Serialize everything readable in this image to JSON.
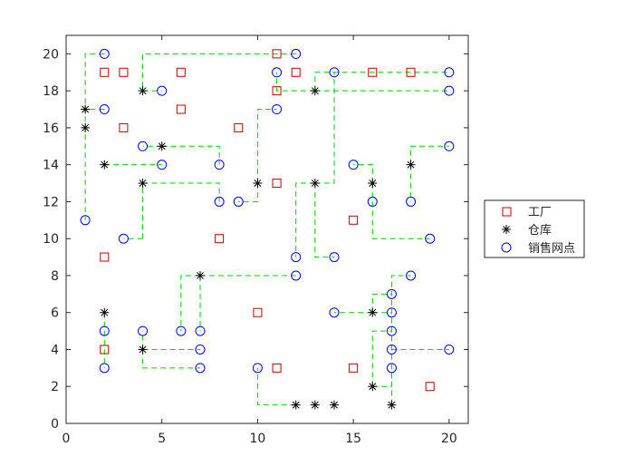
{
  "chart_data": {
    "type": "scatter",
    "xlim": [
      0,
      21
    ],
    "ylim": [
      0,
      21
    ],
    "x_ticks": [
      0,
      5,
      10,
      15,
      20
    ],
    "y_ticks": [
      0,
      2,
      4,
      6,
      8,
      10,
      12,
      14,
      16,
      18,
      20
    ],
    "grid": false,
    "legend_position": "right",
    "colors": {
      "factory": "#c00000",
      "warehouse": "#000000",
      "outlet": "#0000ff",
      "route": "#00cc00",
      "axes": "#262626"
    },
    "series": [
      {
        "name": "工厂",
        "marker": "square",
        "points": [
          [
            2,
            19
          ],
          [
            3,
            19
          ],
          [
            6,
            19
          ],
          [
            11,
            20
          ],
          [
            12,
            19
          ],
          [
            16,
            19
          ],
          [
            18,
            19
          ],
          [
            6,
            17
          ],
          [
            11,
            18
          ],
          [
            3,
            16
          ],
          [
            9,
            16
          ],
          [
            11,
            13
          ],
          [
            15,
            11
          ],
          [
            8,
            10
          ],
          [
            2,
            9
          ],
          [
            10,
            6
          ],
          [
            2,
            4
          ],
          [
            11,
            3
          ],
          [
            15,
            3
          ],
          [
            19,
            2
          ]
        ]
      },
      {
        "name": "仓库",
        "marker": "asterisk",
        "points": [
          [
            1,
            17
          ],
          [
            1,
            16
          ],
          [
            4,
            18
          ],
          [
            13,
            18
          ],
          [
            2,
            14
          ],
          [
            5,
            15
          ],
          [
            4,
            13
          ],
          [
            10,
            13
          ],
          [
            13,
            13
          ],
          [
            16,
            13
          ],
          [
            18,
            14
          ],
          [
            7,
            8
          ],
          [
            2,
            6
          ],
          [
            4,
            4
          ],
          [
            16,
            6
          ],
          [
            16,
            2
          ],
          [
            17,
            1
          ],
          [
            12,
            1
          ],
          [
            13,
            1
          ],
          [
            14,
            1
          ]
        ]
      },
      {
        "name": "销售网点",
        "marker": "circle",
        "points": [
          [
            2,
            20
          ],
          [
            12,
            20
          ],
          [
            5,
            18
          ],
          [
            11,
            19
          ],
          [
            14,
            19
          ],
          [
            20,
            19
          ],
          [
            20,
            18
          ],
          [
            2,
            17
          ],
          [
            11,
            17
          ],
          [
            4,
            15
          ],
          [
            5,
            14
          ],
          [
            8,
            14
          ],
          [
            15,
            14
          ],
          [
            20,
            15
          ],
          [
            8,
            12
          ],
          [
            9,
            12
          ],
          [
            16,
            12
          ],
          [
            18,
            12
          ],
          [
            1,
            11
          ],
          [
            3,
            10
          ],
          [
            19,
            10
          ],
          [
            12,
            9
          ],
          [
            14,
            9
          ],
          [
            12,
            8
          ],
          [
            18,
            8
          ],
          [
            17,
            7
          ],
          [
            14,
            6
          ],
          [
            17,
            6
          ],
          [
            2,
            5
          ],
          [
            4,
            5
          ],
          [
            6,
            5
          ],
          [
            7,
            5
          ],
          [
            17,
            5
          ],
          [
            7,
            4
          ],
          [
            17,
            4
          ],
          [
            20,
            4
          ],
          [
            2,
            3
          ],
          [
            7,
            3
          ],
          [
            10,
            3
          ],
          [
            17,
            3
          ]
        ]
      }
    ],
    "routes": [
      [
        [
          2,
          20
        ],
        [
          1,
          20
        ],
        [
          1,
          17
        ],
        [
          1,
          16
        ],
        [
          1,
          11
        ]
      ],
      [
        [
          2,
          17
        ],
        [
          1,
          17
        ]
      ],
      [
        [
          12,
          20
        ],
        [
          4,
          20
        ],
        [
          4,
          18
        ],
        [
          5,
          18
        ]
      ],
      [
        [
          13,
          18
        ],
        [
          11,
          18
        ],
        [
          11,
          19
        ]
      ],
      [
        [
          13,
          18
        ],
        [
          13,
          19
        ],
        [
          20,
          19
        ]
      ],
      [
        [
          13,
          18
        ],
        [
          20,
          18
        ]
      ],
      [
        [
          5,
          15
        ],
        [
          4,
          15
        ]
      ],
      [
        [
          5,
          15
        ],
        [
          8,
          15
        ],
        [
          8,
          14
        ]
      ],
      [
        [
          2,
          14
        ],
        [
          5,
          14
        ]
      ],
      [
        [
          4,
          13
        ],
        [
          8,
          13
        ],
        [
          8,
          12
        ]
      ],
      [
        [
          10,
          13
        ],
        [
          10,
          17
        ],
        [
          11,
          17
        ]
      ],
      [
        [
          10,
          13
        ],
        [
          10,
          12
        ],
        [
          9,
          12
        ]
      ],
      [
        [
          13,
          13
        ],
        [
          12,
          13
        ],
        [
          12,
          9
        ]
      ],
      [
        [
          13,
          13
        ],
        [
          14,
          13
        ],
        [
          14,
          19
        ]
      ],
      [
        [
          13,
          13
        ],
        [
          13,
          9
        ],
        [
          14,
          9
        ]
      ],
      [
        [
          16,
          13
        ],
        [
          16,
          12
        ]
      ],
      [
        [
          16,
          13
        ],
        [
          16,
          14
        ],
        [
          15,
          14
        ]
      ],
      [
        [
          16,
          12
        ],
        [
          16,
          10
        ],
        [
          19,
          10
        ]
      ],
      [
        [
          18,
          14
        ],
        [
          18,
          12
        ]
      ],
      [
        [
          18,
          14
        ],
        [
          18,
          15
        ],
        [
          20,
          15
        ]
      ],
      [
        [
          7,
          8
        ],
        [
          12,
          8
        ]
      ],
      [
        [
          7,
          8
        ],
        [
          6,
          8
        ],
        [
          6,
          5
        ]
      ],
      [
        [
          7,
          8
        ],
        [
          7,
          5
        ]
      ],
      [
        [
          2,
          6
        ],
        [
          2,
          5
        ]
      ],
      [
        [
          2,
          5
        ],
        [
          2,
          3
        ]
      ],
      [
        [
          4,
          4
        ],
        [
          7,
          4
        ]
      ],
      [
        [
          4,
          4
        ],
        [
          4,
          5
        ]
      ],
      [
        [
          4,
          4
        ],
        [
          4,
          3
        ],
        [
          7,
          3
        ]
      ],
      [
        [
          16,
          6
        ],
        [
          14,
          6
        ]
      ],
      [
        [
          16,
          6
        ],
        [
          16,
          7
        ],
        [
          17,
          7
        ]
      ],
      [
        [
          16,
          6
        ],
        [
          17,
          6
        ]
      ],
      [
        [
          16,
          2
        ],
        [
          16,
          5
        ],
        [
          17,
          5
        ]
      ],
      [
        [
          16,
          2
        ],
        [
          17,
          2
        ],
        [
          17,
          3
        ]
      ],
      [
        [
          17,
          1
        ],
        [
          17,
          8
        ],
        [
          18,
          8
        ]
      ],
      [
        [
          17,
          4
        ],
        [
          20,
          4
        ]
      ],
      [
        [
          12,
          1
        ],
        [
          10,
          1
        ],
        [
          10,
          3
        ]
      ],
      [
        [
          4,
          10
        ],
        [
          3,
          10
        ]
      ],
      [
        [
          4,
          10
        ],
        [
          4,
          13
        ]
      ]
    ]
  }
}
